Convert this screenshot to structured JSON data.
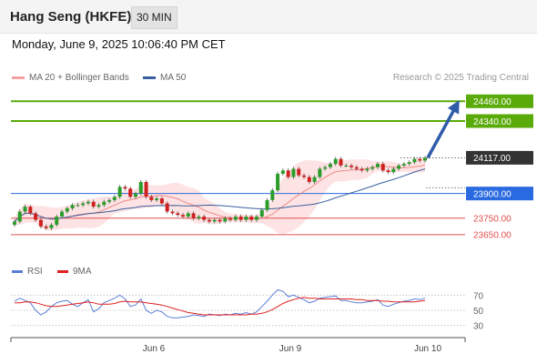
{
  "header": {
    "title": "Hang Seng (HKFE)",
    "timeframe": "30 MIN"
  },
  "date": "Monday, June 9, 2025 10:06:40 PM CET",
  "credit": "Research © 2025 Trading Central",
  "legend": [
    {
      "name": "MA 20 + Bollinger Bands",
      "color": "#f08a8a"
    },
    {
      "name": "MA 50",
      "color": "#3a5fa0"
    }
  ],
  "rsi_legend": [
    {
      "name": "RSI",
      "color": "#5b7fd6"
    },
    {
      "name": "9MA",
      "color": "#e02020"
    }
  ],
  "colors": {
    "up": "#2a9d2a",
    "down": "#d02020",
    "target": "#5aaa0a",
    "pivot": "#2a6ae0",
    "support": "#e05050",
    "arrow": "#2f5ca8"
  },
  "chart_data": {
    "type": "candlestick",
    "instrument": "Hang Seng (HKFE)",
    "interval": "30 MIN",
    "ylim": [
      23550,
      24550
    ],
    "x_ticks": [
      "Jun 6",
      "Jun 9",
      "Jun 10"
    ],
    "levels": [
      {
        "label": "24460.00",
        "value": 24460,
        "kind": "target"
      },
      {
        "label": "24340.00",
        "value": 24340,
        "kind": "target"
      },
      {
        "label": "24117.00",
        "value": 24117,
        "kind": "last"
      },
      {
        "label": "23900.00",
        "value": 23900,
        "kind": "pivot"
      },
      {
        "label": "23750.00",
        "value": 23750,
        "kind": "support"
      },
      {
        "label": "23650.00",
        "value": 23650,
        "kind": "support"
      }
    ],
    "close": [
      23730,
      23790,
      23820,
      23780,
      23740,
      23700,
      23690,
      23710,
      23760,
      23790,
      23810,
      23830,
      23830,
      23840,
      23850,
      23820,
      23830,
      23850,
      23860,
      23880,
      23940,
      23930,
      23880,
      23900,
      23970,
      23880,
      23860,
      23870,
      23840,
      23790,
      23780,
      23770,
      23760,
      23780,
      23750,
      23760,
      23740,
      23730,
      23740,
      23730,
      23750,
      23740,
      23760,
      23740,
      23760,
      23740,
      23760,
      23800,
      23860,
      23920,
      24020,
      24040,
      24000,
      24050,
      24010,
      24000,
      23970,
      24000,
      24050,
      24060,
      24080,
      24110,
      24070,
      24070,
      24060,
      24050,
      24040,
      24050,
      24060,
      24080,
      24040,
      24030,
      24050,
      24070,
      24080,
      24090,
      24110,
      24100,
      24117
    ],
    "rsi_ylim": [
      20,
      80
    ],
    "rsi_ticks": [
      70,
      50,
      30
    ],
    "rsi": [
      62,
      66,
      63,
      60,
      50,
      44,
      48,
      55,
      60,
      62,
      63,
      58,
      55,
      60,
      64,
      48,
      52,
      60,
      63,
      66,
      70,
      65,
      55,
      57,
      65,
      50,
      46,
      50,
      48,
      42,
      40,
      40,
      41,
      42,
      44,
      43,
      42,
      45,
      44,
      43,
      45,
      44,
      46,
      45,
      47,
      45,
      48,
      55,
      62,
      70,
      77,
      75,
      68,
      70,
      67,
      64,
      60,
      62,
      66,
      67,
      68,
      69,
      63,
      63,
      61,
      60,
      60,
      61,
      62,
      64,
      57,
      55,
      58,
      60,
      62,
      63,
      65,
      64,
      66
    ],
    "rsi_ma": [
      60,
      60,
      61,
      61,
      60,
      58,
      56,
      55,
      55,
      56,
      57,
      58,
      59,
      60,
      61,
      60,
      58,
      58,
      58,
      59,
      61,
      62,
      61,
      61,
      61,
      60,
      59,
      58,
      57,
      55,
      53,
      51,
      49,
      47,
      46,
      45,
      44,
      44,
      44,
      44,
      44,
      44,
      44,
      44,
      44,
      45,
      45,
      46,
      48,
      51,
      55,
      59,
      62,
      64,
      66,
      67,
      66,
      66,
      65,
      65,
      65,
      65,
      65,
      65,
      65,
      64,
      64,
      63,
      63,
      63,
      62,
      62,
      61,
      61,
      61,
      61,
      61,
      62,
      63
    ]
  }
}
